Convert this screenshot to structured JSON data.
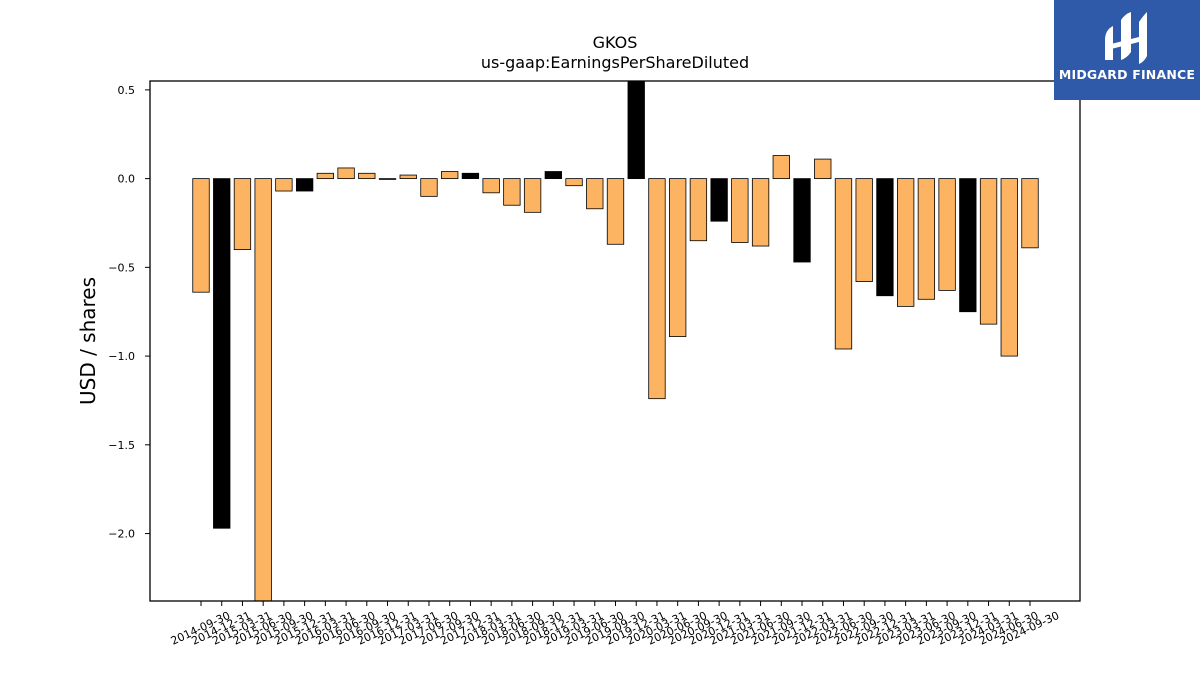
{
  "chart_data": {
    "type": "bar",
    "title": "GKOS",
    "subtitle": "us-gaap:EarningsPerShareDiluted",
    "xlabel": "",
    "ylabel": "USD / shares",
    "ylim": [
      -2.38,
      0.55
    ],
    "yticks": [
      0.5,
      0.0,
      -0.5,
      -1.0,
      -1.5,
      -2.0
    ],
    "ytick_labels": [
      "0.5",
      "0.0",
      "−0.5",
      "−1.0",
      "−1.5",
      "−2.0"
    ],
    "grid": false,
    "legend": "none",
    "colors": {
      "quarterly": "#fdb462",
      "annual": "#000000",
      "edge": "#000000"
    },
    "categories": [
      "2014-09-30",
      "2014-12-31",
      "2015-03-31",
      "2015-06-30",
      "2015-09-30",
      "2015-12-31",
      "2016-03-31",
      "2016-06-30",
      "2016-09-30",
      "2016-12-31",
      "2017-03-31",
      "2017-06-30",
      "2017-09-30",
      "2017-12-31",
      "2018-03-31",
      "2018-06-30",
      "2018-09-30",
      "2018-12-31",
      "2019-03-31",
      "2019-06-30",
      "2019-09-30",
      "2019-12-31",
      "2020-03-31",
      "2020-06-30",
      "2020-09-30",
      "2020-12-31",
      "2021-03-31",
      "2021-06-30",
      "2021-09-30",
      "2021-12-31",
      "2022-03-31",
      "2022-06-30",
      "2022-09-30",
      "2022-12-31",
      "2023-03-31",
      "2023-06-30",
      "2023-09-30",
      "2023-12-31",
      "2024-03-31",
      "2024-06-30",
      "2024-09-30"
    ],
    "values": [
      -0.64,
      -1.97,
      -0.4,
      -2.4,
      -0.07,
      -0.07,
      0.03,
      0.06,
      0.03,
      0.0,
      0.02,
      -0.1,
      0.04,
      0.03,
      -0.08,
      -0.15,
      -0.19,
      0.04,
      -0.04,
      -0.17,
      -0.37,
      0.56,
      -1.24,
      -0.89,
      -0.35,
      -0.24,
      -0.36,
      -0.38,
      0.13,
      -0.47,
      0.11,
      -0.96,
      -0.58,
      -0.66,
      -0.72,
      -0.68,
      -0.63,
      -0.75,
      -0.82,
      -1.0,
      -0.39
    ],
    "bar_colors": [
      "#fdb462",
      "#000000",
      "#fdb462",
      "#fdb462",
      "#fdb462",
      "#000000",
      "#fdb462",
      "#fdb462",
      "#fdb462",
      "#fdb462",
      "#fdb462",
      "#fdb462",
      "#fdb462",
      "#000000",
      "#fdb462",
      "#fdb462",
      "#fdb462",
      "#000000",
      "#fdb462",
      "#fdb462",
      "#fdb462",
      "#000000",
      "#fdb462",
      "#fdb462",
      "#fdb462",
      "#000000",
      "#fdb462",
      "#fdb462",
      "#fdb462",
      "#000000",
      "#fdb462",
      "#fdb462",
      "#fdb462",
      "#000000",
      "#fdb462",
      "#fdb462",
      "#fdb462",
      "#000000",
      "#fdb462",
      "#fdb462",
      "#fdb462"
    ]
  },
  "logo": {
    "text": "MIDGARD FINANCE",
    "icon": "midgard-logo-icon",
    "background": "#2f5aaa"
  }
}
